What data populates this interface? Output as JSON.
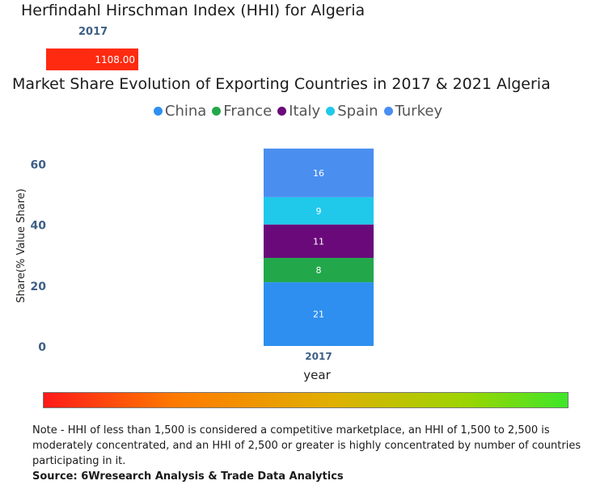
{
  "hhi": {
    "title": "Herfindahl Hirschman Index (HHI) for Algeria",
    "year": "2017",
    "value": 1108.0,
    "value_label": "1108.00",
    "bar_color": "#ff2a10"
  },
  "chart_data": {
    "type": "bar",
    "stacked": true,
    "title": "Market Share Evolution of Exporting Countries in 2017 & 2021 Algeria",
    "xlabel": "year",
    "ylabel": "Share(% Value Share)",
    "categories": [
      "2017"
    ],
    "ylim": [
      0,
      66
    ],
    "yticks": [
      0,
      20,
      40,
      60
    ],
    "grid": false,
    "legend_position": "top-center",
    "series": [
      {
        "name": "China",
        "values": [
          21
        ],
        "color": "#2e8ff0"
      },
      {
        "name": "France",
        "values": [
          8
        ],
        "color": "#22a84a"
      },
      {
        "name": "Italy",
        "values": [
          11
        ],
        "color": "#6a0a7a"
      },
      {
        "name": "Spain",
        "values": [
          9
        ],
        "color": "#20c8ea"
      },
      {
        "name": "Turkey",
        "values": [
          16
        ],
        "color": "#4a8ef0"
      }
    ]
  },
  "footer": {
    "note": "Note - HHI of less than 1,500 is considered a competitive marketplace, an HHI of 1,500 to 2,500 is moderately concentrated, and an HHI of 2,500 or greater is highly concentrated by number of countries participating in it.",
    "source": "Source: 6Wresearch Analysis & Trade Data Analytics"
  }
}
